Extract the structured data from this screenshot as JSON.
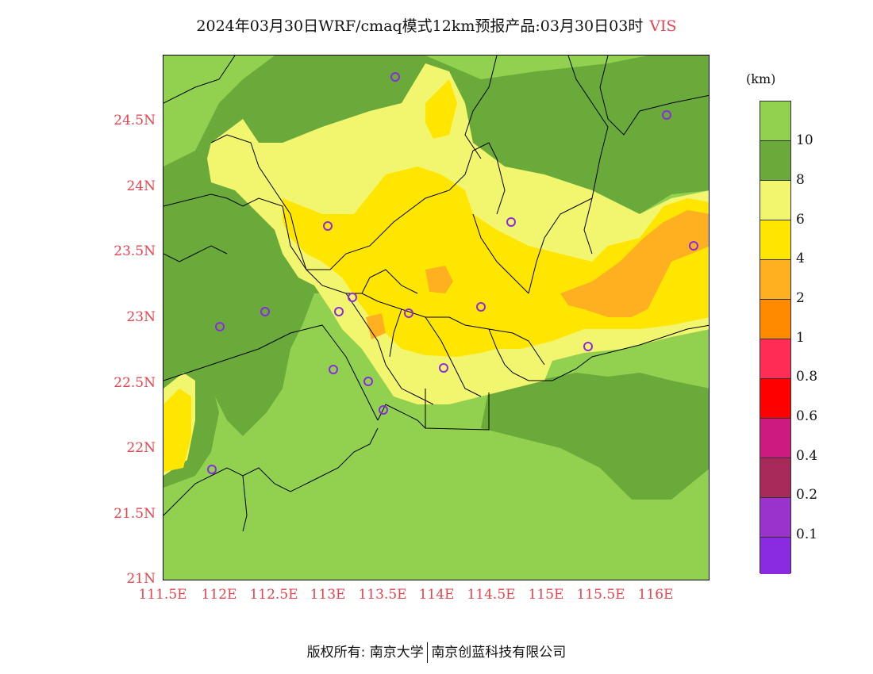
{
  "title": {
    "text": "2024年03月30日WRF/cmaq模式12km预报产品:03月30日03时",
    "variable": "VIS",
    "variable_color": "#e8434f"
  },
  "map": {
    "lat_ticks": [
      "24.5N",
      "24N",
      "23.5N",
      "23N",
      "22.5N",
      "22N",
      "21.5N",
      "21N"
    ],
    "lon_ticks": [
      "111.5E",
      "112E",
      "112.5E",
      "113E",
      "113.5E",
      "114E",
      "114.5E",
      "115E",
      "115.5E",
      "116E"
    ],
    "station_marker_color": "#8a2be2",
    "background_color": "#92d050",
    "sea_color": "#92d050"
  },
  "legend": {
    "unit": "(km)",
    "levels": [
      {
        "label": "10",
        "color": "#92d050"
      },
      {
        "label": "8",
        "color": "#6aaa3a"
      },
      {
        "label": "6",
        "color": "#f2f56e"
      },
      {
        "label": "4",
        "color": "#ffe600"
      },
      {
        "label": "2",
        "color": "#ffb020"
      },
      {
        "label": "1",
        "color": "#ff8a00"
      },
      {
        "label": "0.8",
        "color": "#ff2d55"
      },
      {
        "label": "0.6",
        "color": "#ff0000"
      },
      {
        "label": "0.4",
        "color": "#cc1a80"
      },
      {
        "label": "0.2",
        "color": "#a82a5a"
      },
      {
        "label": "0.1",
        "color": "#9933cc"
      },
      {
        "label": "",
        "color": "#8a2be2"
      }
    ]
  },
  "footer": {
    "left": "版权所有: 南京大学",
    "right": "南京创蓝科技有限公司"
  }
}
